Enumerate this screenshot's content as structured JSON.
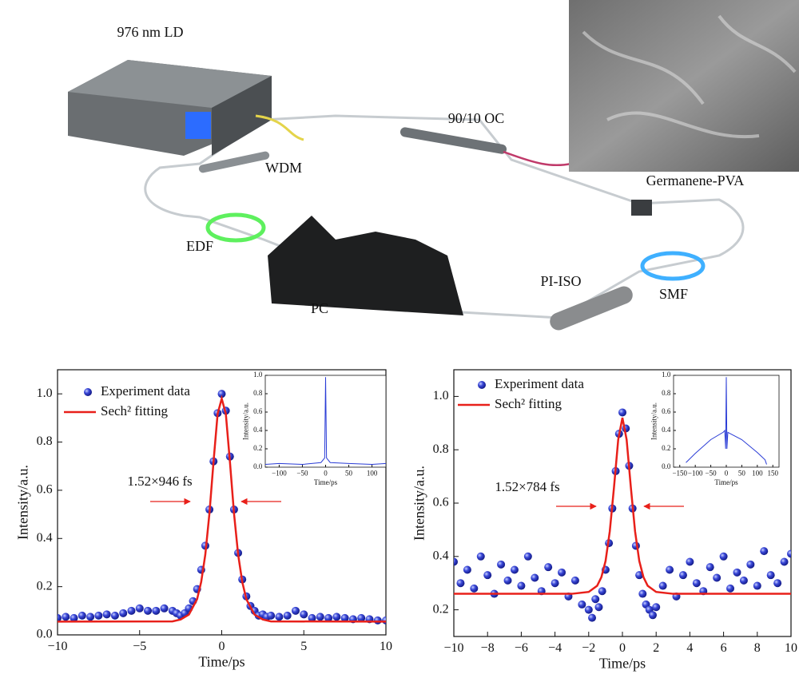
{
  "schematic": {
    "labels": [
      "976 nm LD",
      "WDM",
      "90/10 OC",
      "Germanene-PVA",
      "EDF",
      "PC",
      "PI-ISO",
      "SMF"
    ]
  },
  "chart_data": [
    {
      "type": "scatter",
      "x_label": "Time/ps",
      "y_label": "Intensity/a.u.",
      "xlim": [
        -10,
        10
      ],
      "ylim": [
        0,
        1.1
      ],
      "xticks": [
        {
          "value": -10,
          "label": "−10"
        },
        {
          "value": -5,
          "label": "−5"
        },
        0,
        5,
        10
      ],
      "yticks": [
        {
          "value": 0,
          "label": "0.0"
        },
        0.2,
        0.4,
        0.6,
        0.8,
        {
          "value": 1,
          "label": "1.0"
        }
      ],
      "annotation": "1.52×946 fs",
      "annotation_color": "#e8201a",
      "series": [
        {
          "name": "Experiment data",
          "kind": "scatter",
          "color": "#2b3bd1",
          "x": [
            -10,
            -9.5,
            -9,
            -8.5,
            -8,
            -7.5,
            -7,
            -6.5,
            -6,
            -5.5,
            -5,
            -4.5,
            -4,
            -3.5,
            -3,
            -2.75,
            -2.5,
            -2.25,
            -2,
            -1.75,
            -1.5,
            -1.25,
            -1,
            -0.75,
            -0.5,
            -0.25,
            0,
            0.25,
            0.5,
            0.75,
            1,
            1.25,
            1.5,
            1.75,
            2,
            2.25,
            2.5,
            2.75,
            3,
            3.5,
            4,
            4.5,
            5,
            5.5,
            6,
            6.5,
            7,
            7.5,
            8,
            8.5,
            9,
            9.5,
            10
          ],
          "values": [
            0.07,
            0.075,
            0.07,
            0.08,
            0.075,
            0.08,
            0.085,
            0.08,
            0.09,
            0.1,
            0.11,
            0.1,
            0.1,
            0.11,
            0.1,
            0.09,
            0.08,
            0.09,
            0.11,
            0.14,
            0.19,
            0.27,
            0.37,
            0.52,
            0.72,
            0.92,
            1.0,
            0.93,
            0.74,
            0.52,
            0.34,
            0.23,
            0.16,
            0.12,
            0.1,
            0.08,
            0.085,
            0.075,
            0.08,
            0.075,
            0.08,
            0.1,
            0.085,
            0.07,
            0.075,
            0.07,
            0.075,
            0.07,
            0.065,
            0.07,
            0.065,
            0.06,
            0.06
          ]
        },
        {
          "name": "Sech² fitting",
          "kind": "line",
          "color": "#e8201a",
          "x": [
            -10,
            -3,
            -2.5,
            -2,
            -1.5,
            -1.25,
            -1,
            -0.75,
            -0.5,
            -0.25,
            0,
            0.25,
            0.5,
            0.75,
            1,
            1.25,
            1.5,
            2,
            2.5,
            3,
            10
          ],
          "values": [
            0.055,
            0.056,
            0.064,
            0.084,
            0.148,
            0.22,
            0.333,
            0.503,
            0.718,
            0.917,
            0.98,
            0.917,
            0.718,
            0.503,
            0.333,
            0.22,
            0.148,
            0.084,
            0.064,
            0.056,
            0.055
          ]
        }
      ],
      "inset": {
        "type": "line",
        "x_label": "Time/ps",
        "y_label": "Intensity/a.u.",
        "xlim": [
          -130,
          130
        ],
        "ylim": [
          0,
          1.0
        ],
        "xticks": [
          {
            "value": -100,
            "label": "−100"
          },
          {
            "value": -50,
            "label": "−50"
          },
          0,
          50,
          100
        ],
        "yticks": [
          {
            "value": 0,
            "label": "0.0"
          },
          0.2,
          0.4,
          0.6,
          0.8,
          {
            "value": 1,
            "label": "1.0"
          }
        ],
        "series": [
          {
            "color": "#2a3cd6",
            "kind": "line",
            "x": [
              -130,
              -100,
              -50,
              -10,
              -2,
              0,
              2,
              10,
              50,
              100,
              130
            ],
            "values": [
              0.03,
              0.04,
              0.03,
              0.05,
              0.1,
              0.98,
              0.1,
              0.05,
              0.04,
              0.03,
              0.04
            ]
          }
        ]
      }
    },
    {
      "type": "scatter",
      "x_label": "Time/ps",
      "y_label": "Intensity/a.u.",
      "xlim": [
        -10,
        10
      ],
      "ylim": [
        0.1,
        1.1
      ],
      "xticks": [
        {
          "value": -10,
          "label": "−10"
        },
        {
          "value": -8,
          "label": "−8"
        },
        {
          "value": -6,
          "label": "−6"
        },
        {
          "value": -4,
          "label": "−4"
        },
        {
          "value": -2,
          "label": "−2"
        },
        0,
        2,
        4,
        6,
        8,
        10
      ],
      "yticks": [
        0.2,
        0.4,
        0.6,
        0.8,
        {
          "value": 1,
          "label": "1.0"
        }
      ],
      "annotation": "1.52×784 fs",
      "annotation_color": "#e8201a",
      "series": [
        {
          "name": "Experiment data",
          "kind": "scatter",
          "color": "#2b3bd1",
          "x": [
            -10,
            -9.6,
            -9.2,
            -8.8,
            -8.4,
            -8,
            -7.6,
            -7.2,
            -6.8,
            -6.4,
            -6,
            -5.6,
            -5.2,
            -4.8,
            -4.4,
            -4,
            -3.6,
            -3.2,
            -2.8,
            -2.4,
            -2,
            -1.8,
            -1.6,
            -1.4,
            -1.2,
            -1,
            -0.8,
            -0.6,
            -0.4,
            -0.2,
            0,
            0.2,
            0.4,
            0.6,
            0.8,
            1,
            1.2,
            1.4,
            1.6,
            1.8,
            2,
            2.4,
            2.8,
            3.2,
            3.6,
            4,
            4.4,
            4.8,
            5.2,
            5.6,
            6,
            6.4,
            6.8,
            7.2,
            7.6,
            8,
            8.4,
            8.8,
            9.2,
            9.6,
            10
          ],
          "values": [
            0.38,
            0.3,
            0.35,
            0.28,
            0.4,
            0.33,
            0.26,
            0.37,
            0.31,
            0.35,
            0.29,
            0.4,
            0.32,
            0.27,
            0.36,
            0.3,
            0.34,
            0.25,
            0.31,
            0.22,
            0.2,
            0.17,
            0.24,
            0.21,
            0.27,
            0.35,
            0.45,
            0.58,
            0.72,
            0.86,
            0.94,
            0.88,
            0.74,
            0.58,
            0.44,
            0.33,
            0.26,
            0.22,
            0.2,
            0.18,
            0.21,
            0.29,
            0.35,
            0.25,
            0.33,
            0.38,
            0.3,
            0.27,
            0.36,
            0.32,
            0.4,
            0.28,
            0.34,
            0.31,
            0.37,
            0.29,
            0.42,
            0.33,
            0.3,
            0.38,
            0.41
          ]
        },
        {
          "name": "Sech² fitting",
          "kind": "line",
          "color": "#e8201a",
          "x": [
            -10,
            -3,
            -2,
            -1.5,
            -1.25,
            -1,
            -0.75,
            -0.5,
            -0.25,
            0,
            0.25,
            0.5,
            0.75,
            1,
            1.25,
            1.5,
            2,
            3,
            10
          ],
          "values": [
            0.26,
            0.26,
            0.267,
            0.29,
            0.322,
            0.383,
            0.494,
            0.659,
            0.838,
            0.92,
            0.838,
            0.659,
            0.494,
            0.383,
            0.322,
            0.29,
            0.267,
            0.26,
            0.26
          ]
        }
      ],
      "inset": {
        "type": "line",
        "x_label": "Time/ps",
        "y_label": "Intensity/a.u.",
        "xlim": [
          -170,
          170
        ],
        "ylim": [
          0,
          1.0
        ],
        "xticks": [
          {
            "value": -150,
            "label": "−150"
          },
          {
            "value": -100,
            "label": "−100"
          },
          {
            "value": -50,
            "label": "−50"
          },
          0,
          50,
          100,
          150
        ],
        "yticks": [
          {
            "value": 0,
            "label": "0.0"
          },
          0.2,
          0.4,
          0.6,
          0.8,
          {
            "value": 1,
            "label": "1.0"
          }
        ],
        "series": [
          {
            "color": "#2a3cd6",
            "kind": "line",
            "x": [
              -130,
              -100,
              -50,
              -10,
              -5,
              -2,
              0,
              2,
              5,
              10,
              50,
              100,
              125,
              130
            ],
            "values": [
              0.05,
              0.15,
              0.3,
              0.38,
              0.4,
              0.2,
              0.98,
              0.2,
              0.38,
              0.37,
              0.3,
              0.16,
              0.08,
              0.03
            ]
          }
        ]
      }
    }
  ]
}
